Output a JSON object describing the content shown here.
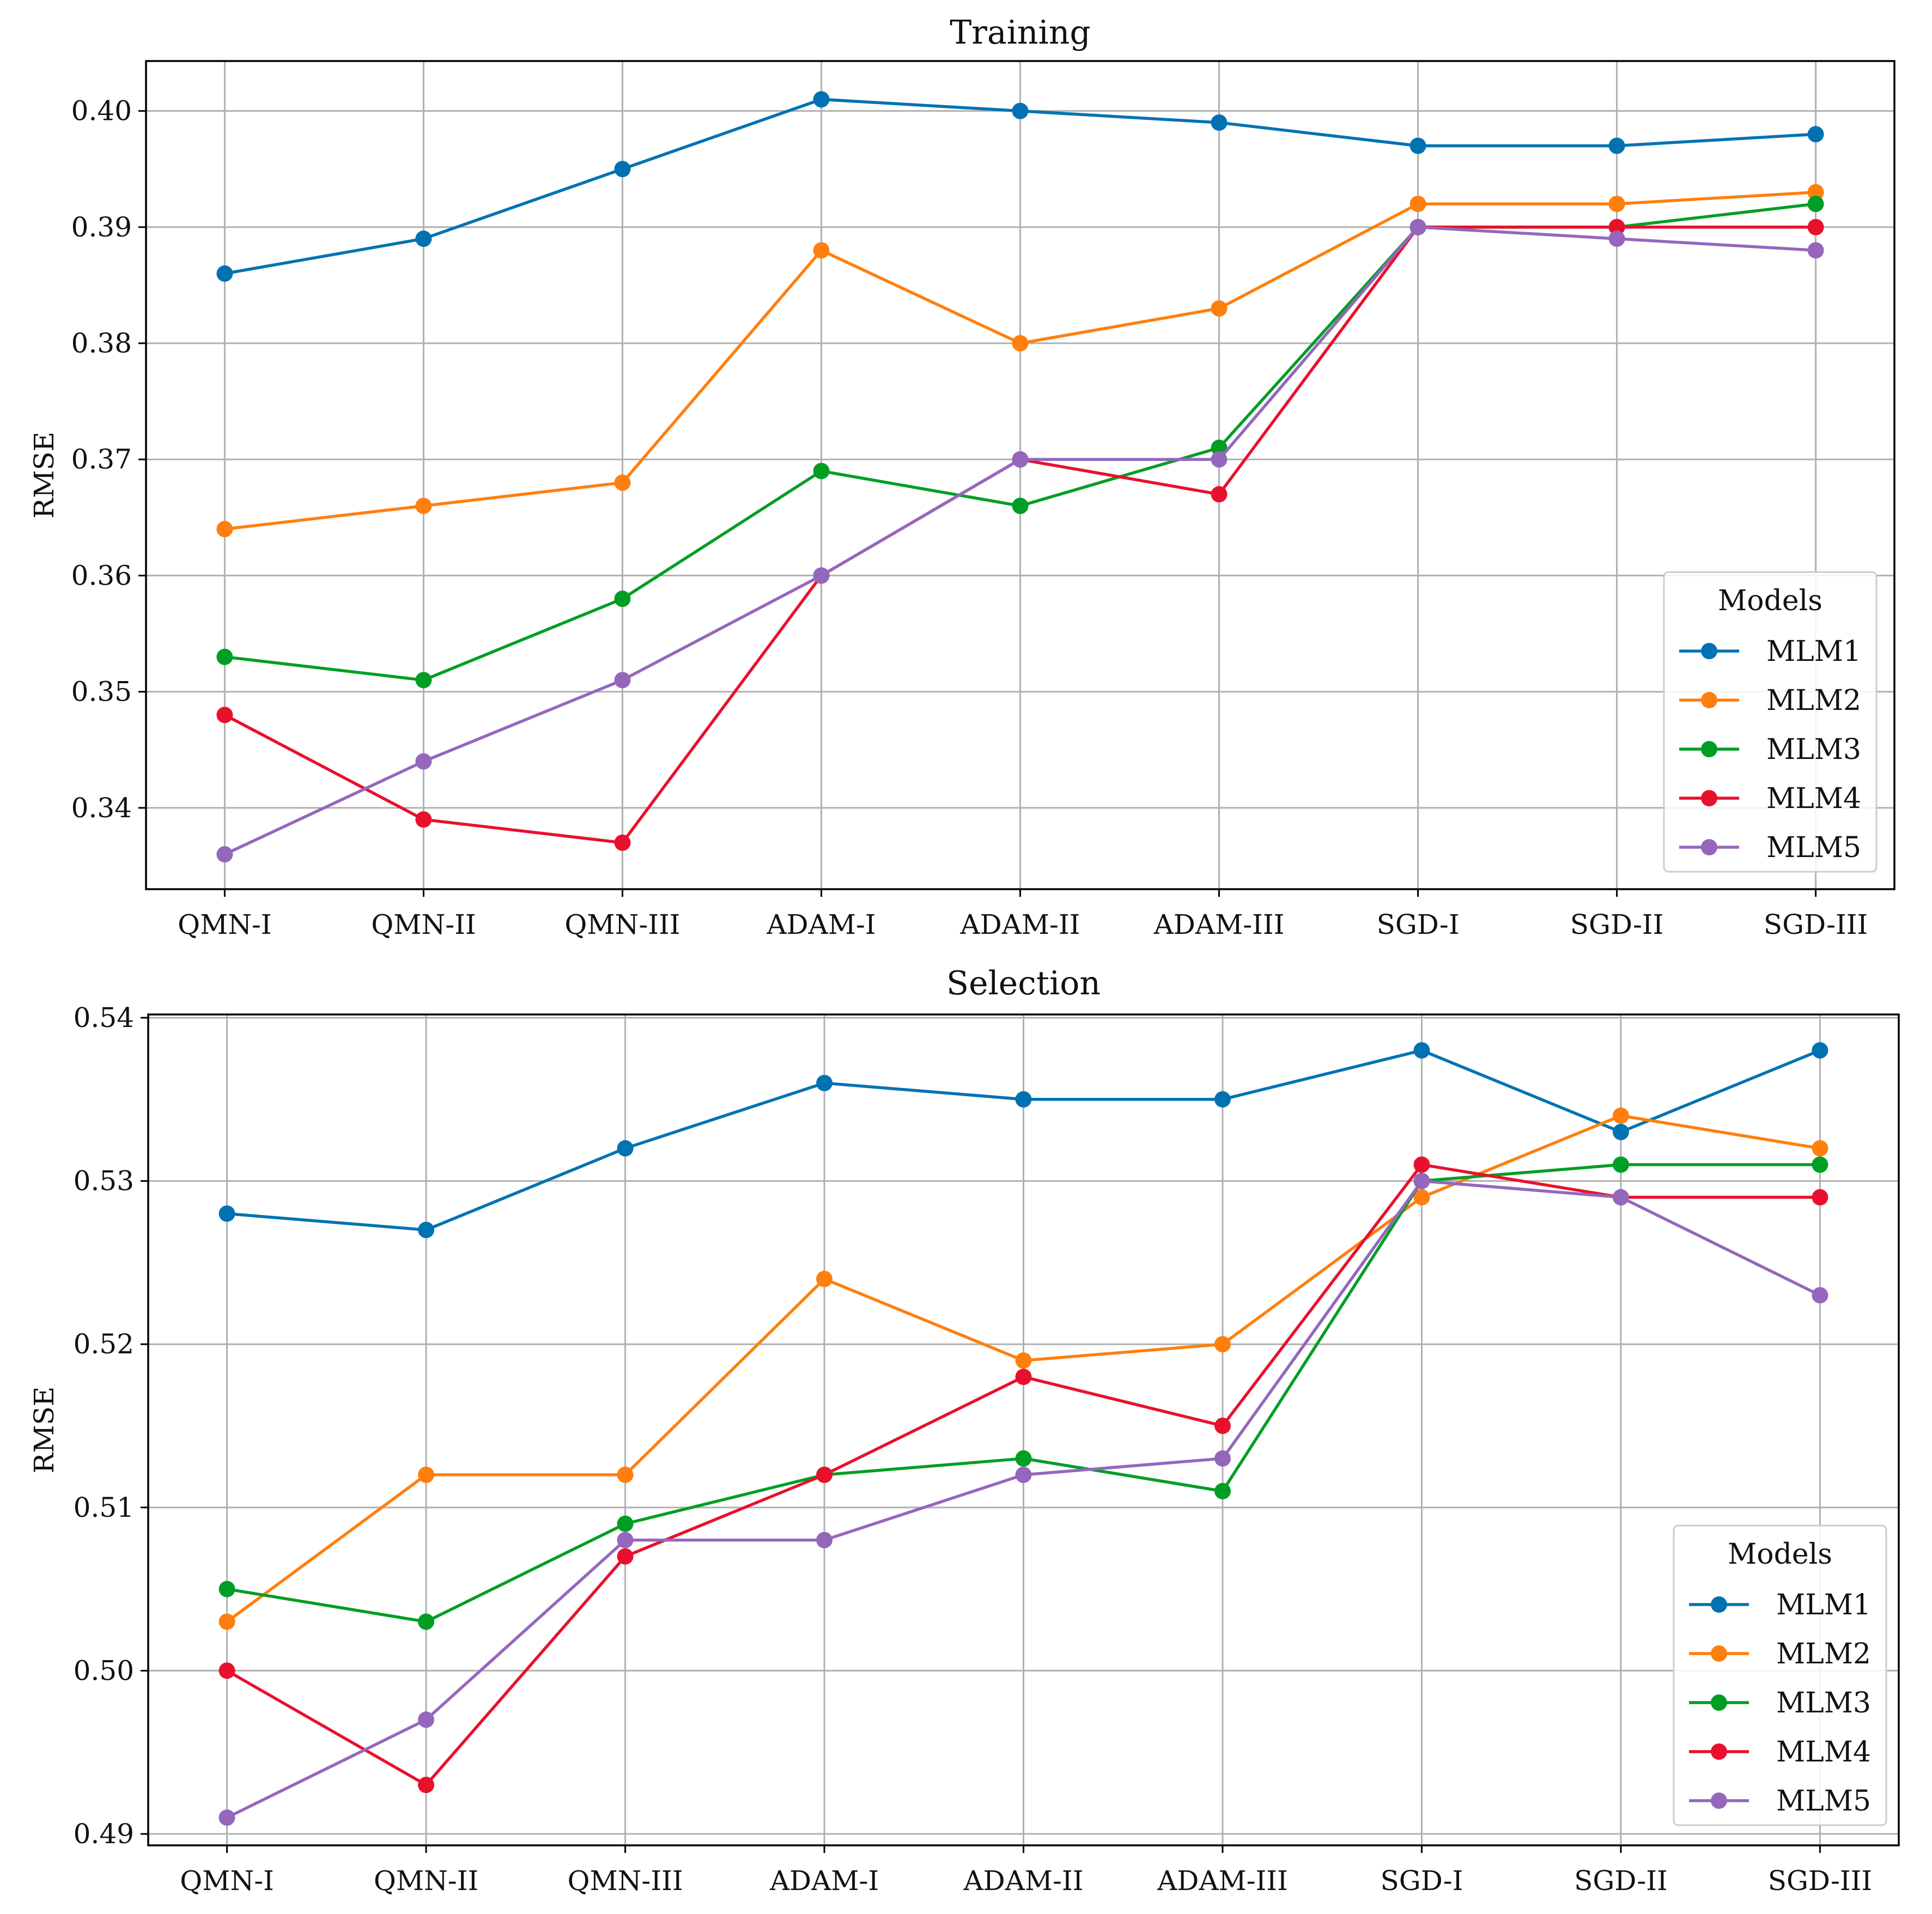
{
  "chart_data": [
    {
      "type": "line",
      "title": "Training",
      "xlabel": "",
      "ylabel": "RMSE",
      "categories": [
        "QMN-I",
        "QMN-II",
        "QMN-III",
        "ADAM-I",
        "ADAM-II",
        "ADAM-III",
        "SGD-I",
        "SGD-II",
        "SGD-III"
      ],
      "ylim": [
        0.333,
        0.4043
      ],
      "yticks": [
        0.34,
        0.35,
        0.36,
        0.37,
        0.38,
        0.39,
        0.4
      ],
      "ytick_labels": [
        "0.34",
        "0.35",
        "0.36",
        "0.37",
        "0.38",
        "0.39",
        "0.40"
      ],
      "grid": true,
      "legend_title": "Models",
      "legend_position": "lower-right",
      "series": [
        {
          "name": "MLM1",
          "color": "#0072B2",
          "values": [
            0.386,
            0.389,
            0.395,
            0.401,
            0.4,
            0.399,
            0.397,
            0.397,
            0.398
          ]
        },
        {
          "name": "MLM2",
          "color": "#FF7F0E",
          "values": [
            0.364,
            0.366,
            0.368,
            0.388,
            0.38,
            0.383,
            0.392,
            0.392,
            0.393
          ]
        },
        {
          "name": "MLM3",
          "color": "#009E24",
          "values": [
            0.353,
            0.351,
            0.358,
            0.369,
            0.366,
            0.371,
            0.39,
            0.39,
            0.392
          ]
        },
        {
          "name": "MLM4",
          "color": "#E8112D",
          "values": [
            0.348,
            0.339,
            0.337,
            0.36,
            0.37,
            0.367,
            0.39,
            0.39,
            0.39
          ]
        },
        {
          "name": "MLM5",
          "color": "#9467BD",
          "values": [
            0.336,
            0.344,
            0.351,
            0.36,
            0.37,
            0.37,
            0.39,
            0.389,
            0.388
          ]
        }
      ]
    },
    {
      "type": "line",
      "title": "Selection",
      "xlabel": "",
      "ylabel": "RMSE",
      "categories": [
        "QMN-I",
        "QMN-II",
        "QMN-III",
        "ADAM-I",
        "ADAM-II",
        "ADAM-III",
        "SGD-I",
        "SGD-II",
        "SGD-III"
      ],
      "ylim": [
        0.4893,
        0.5402
      ],
      "yticks": [
        0.49,
        0.5,
        0.51,
        0.52,
        0.53,
        0.54
      ],
      "ytick_labels": [
        "0.49",
        "0.50",
        "0.51",
        "0.52",
        "0.53",
        "0.54"
      ],
      "grid": true,
      "legend_title": "Models",
      "legend_position": "lower-right",
      "series": [
        {
          "name": "MLM1",
          "color": "#0072B2",
          "values": [
            0.528,
            0.527,
            0.532,
            0.536,
            0.535,
            0.535,
            0.538,
            0.533,
            0.538
          ]
        },
        {
          "name": "MLM2",
          "color": "#FF7F0E",
          "values": [
            0.503,
            0.512,
            0.512,
            0.524,
            0.519,
            0.52,
            0.529,
            0.534,
            0.532
          ]
        },
        {
          "name": "MLM3",
          "color": "#009E24",
          "values": [
            0.505,
            0.503,
            0.509,
            0.512,
            0.513,
            0.511,
            0.53,
            0.531,
            0.531
          ]
        },
        {
          "name": "MLM4",
          "color": "#E8112D",
          "values": [
            0.5,
            0.493,
            0.507,
            0.512,
            0.518,
            0.515,
            0.531,
            0.529,
            0.529
          ]
        },
        {
          "name": "MLM5",
          "color": "#9467BD",
          "values": [
            0.491,
            0.497,
            0.508,
            0.508,
            0.512,
            0.513,
            0.53,
            0.529,
            0.523
          ]
        }
      ]
    }
  ]
}
